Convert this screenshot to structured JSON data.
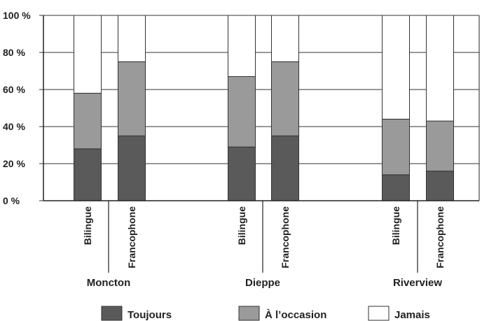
{
  "chart_data": {
    "type": "bar",
    "stacked": true,
    "percent": true,
    "title": "",
    "xlabel": "",
    "ylabel": "",
    "ylim": [
      0,
      100
    ],
    "grid": true,
    "legend_position": "bottom",
    "y_ticks": [
      "0 %",
      "20 %",
      "40 %",
      "60 %",
      "80 %",
      "100 %"
    ],
    "groups": [
      "Moncton",
      "Dieppe",
      "Riverview"
    ],
    "categories": [
      "Bilingue",
      "Francophone",
      "Bilingue",
      "Francophone",
      "Bilingue",
      "Francophone"
    ],
    "series": [
      {
        "name": "Toujours",
        "color": "#5a5a5a",
        "values": [
          28,
          35,
          29,
          35,
          14,
          16
        ]
      },
      {
        "name": "À l’occasion",
        "color": "#9a9a9a",
        "values": [
          30,
          40,
          38,
          40,
          30,
          27
        ]
      },
      {
        "name": "Jamais",
        "color": "#ffffff",
        "values": [
          42,
          25,
          33,
          25,
          56,
          57
        ]
      }
    ]
  }
}
